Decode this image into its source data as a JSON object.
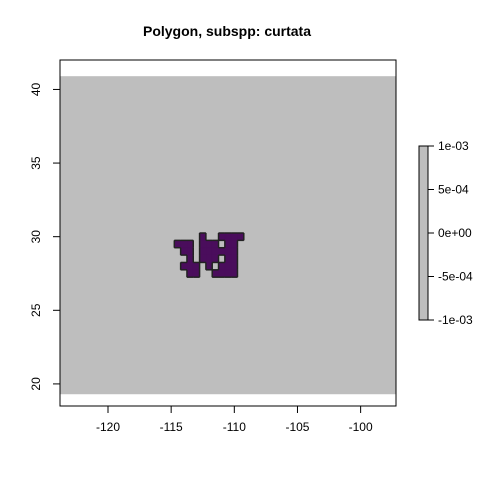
{
  "chart_data": {
    "type": "heatmap",
    "title": "Polygon, subspp: curtata",
    "xlabel": "",
    "ylabel": "",
    "xlim": [
      -123.8,
      -97.2
    ],
    "ylim": [
      18.5,
      42.0
    ],
    "x_ticks": [
      -120,
      -115,
      -110,
      -105,
      -100
    ],
    "x_tick_labels": [
      "-120",
      "-115",
      "-110",
      "-105",
      "-100"
    ],
    "y_ticks": [
      20,
      25,
      30,
      35,
      40
    ],
    "y_tick_labels": [
      "20",
      "25",
      "30",
      "35",
      "40"
    ],
    "background_extent": {
      "x": [
        -123.8,
        -97.2
      ],
      "y": [
        19.3,
        40.9
      ]
    },
    "background_color": "#bebebe",
    "polygon": {
      "fill": "#4a0d5c",
      "stroke": "#222222",
      "cell_size": 0.5,
      "cells": [
        [
          -114.5,
          29.5
        ],
        [
          -114.0,
          29.5
        ],
        [
          -113.5,
          29.5
        ],
        [
          -112.5,
          29.5
        ],
        [
          -112.0,
          29.5
        ],
        [
          -111.5,
          29.5
        ],
        [
          -110.5,
          29.5
        ],
        [
          -110.0,
          29.5
        ],
        [
          -112.5,
          30.0
        ],
        [
          -111.0,
          30.0
        ],
        [
          -110.5,
          30.0
        ],
        [
          -110.0,
          30.0
        ],
        [
          -109.5,
          30.0
        ],
        [
          -114.0,
          29.0
        ],
        [
          -113.5,
          29.0
        ],
        [
          -112.5,
          29.0
        ],
        [
          -112.0,
          29.0
        ],
        [
          -111.5,
          29.0
        ],
        [
          -111.0,
          29.0
        ],
        [
          -110.5,
          29.0
        ],
        [
          -110.0,
          29.0
        ],
        [
          -113.5,
          28.5
        ],
        [
          -112.5,
          28.5
        ],
        [
          -112.0,
          28.5
        ],
        [
          -111.5,
          28.5
        ],
        [
          -110.5,
          28.5
        ],
        [
          -110.0,
          28.5
        ],
        [
          -114.0,
          28.0
        ],
        [
          -113.5,
          28.0
        ],
        [
          -113.0,
          28.0
        ],
        [
          -112.0,
          28.0
        ],
        [
          -111.0,
          28.0
        ],
        [
          -110.5,
          28.0
        ],
        [
          -110.0,
          28.0
        ],
        [
          -113.5,
          27.5
        ],
        [
          -113.0,
          27.5
        ],
        [
          -111.5,
          27.5
        ],
        [
          -111.0,
          27.5
        ],
        [
          -110.5,
          27.5
        ],
        [
          -110.0,
          27.5
        ]
      ]
    },
    "legend": {
      "placement": "right",
      "labels": [
        "1e-03",
        "5e-04",
        "0e+00",
        "-5e-04",
        "-1e-03"
      ],
      "values": [
        0.001,
        0.0005,
        0,
        -0.0005,
        -0.001
      ],
      "range": [
        -0.001,
        0.001
      ],
      "color": "#bebebe"
    }
  }
}
